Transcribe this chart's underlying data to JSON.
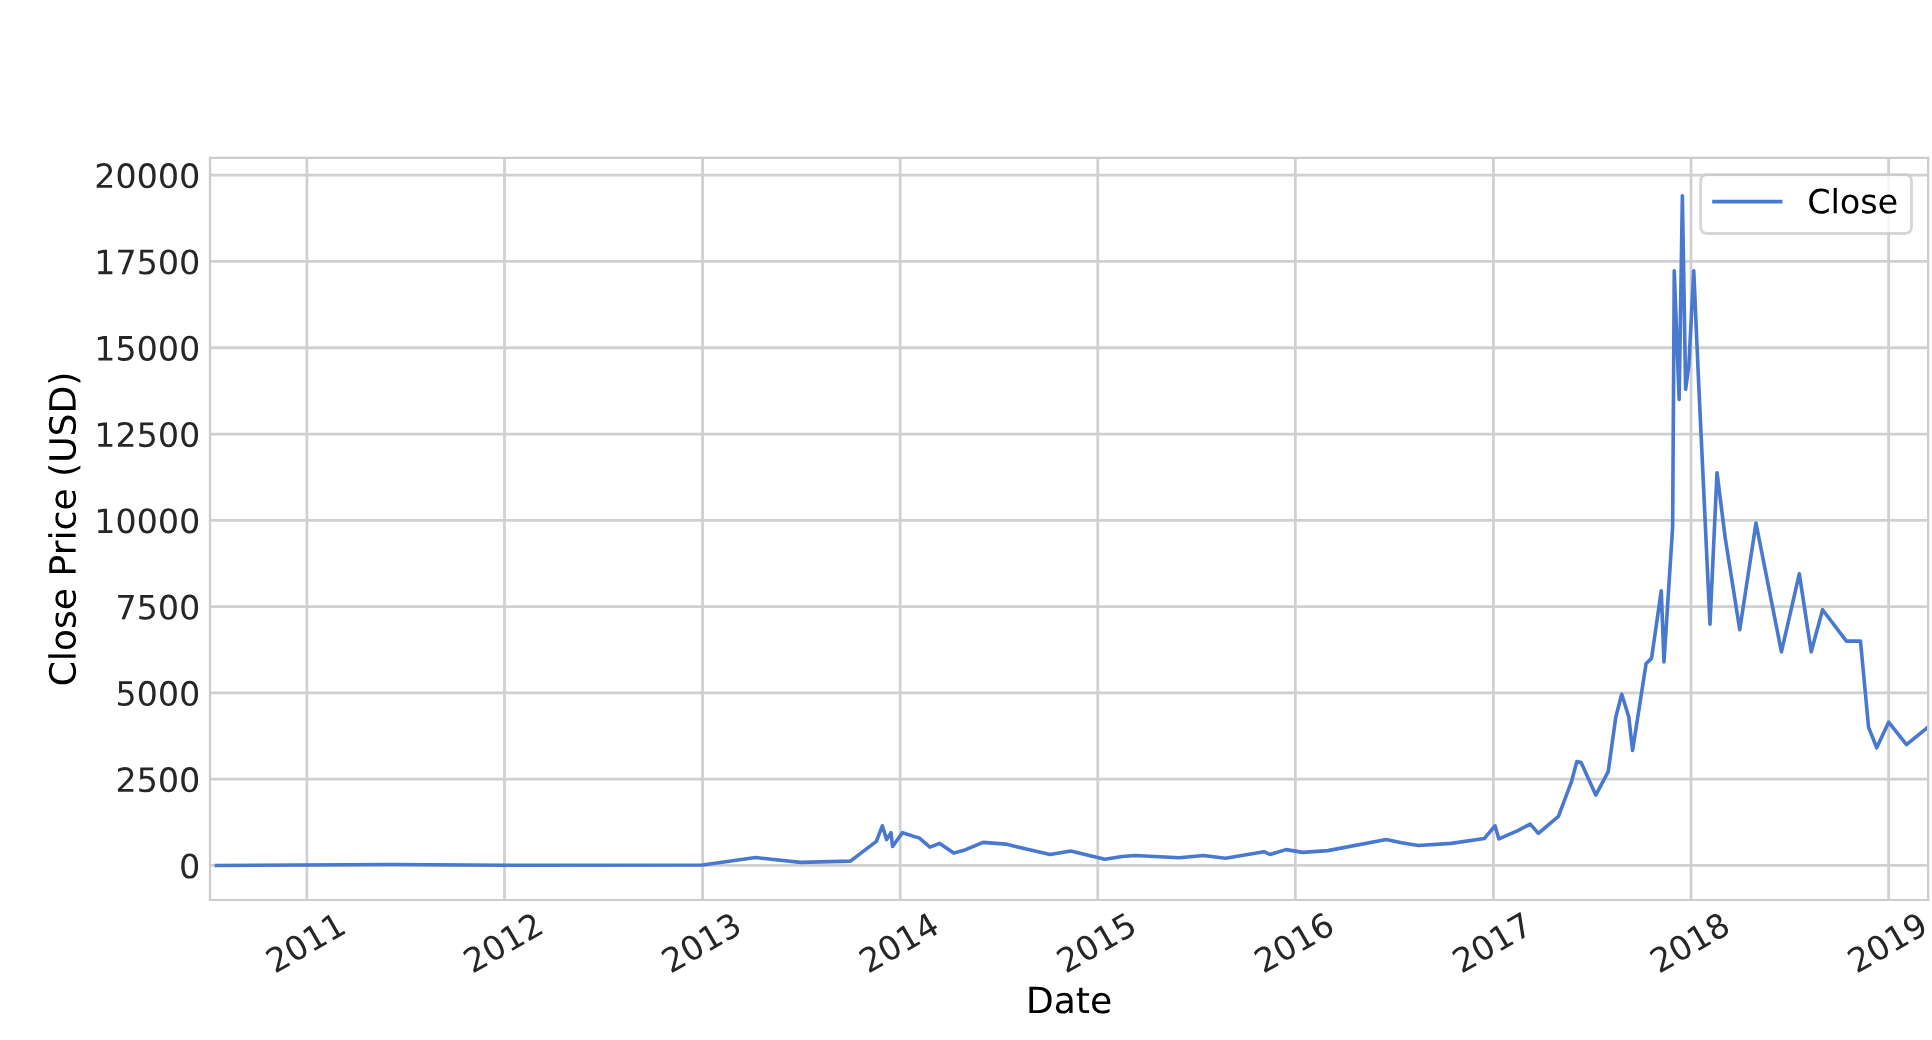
{
  "chart_data": {
    "type": "line",
    "xlabel": "Date",
    "ylabel": "Close Price (USD)",
    "xlim": [
      "2010-07-06",
      "2019-03-15"
    ],
    "ylim": [
      -1000,
      20500
    ],
    "xticks": [
      {
        "value": "2011-01-01",
        "label": "2011"
      },
      {
        "value": "2012-01-01",
        "label": "2012"
      },
      {
        "value": "2013-01-01",
        "label": "2013"
      },
      {
        "value": "2014-01-01",
        "label": "2014"
      },
      {
        "value": "2015-01-01",
        "label": "2015"
      },
      {
        "value": "2016-01-01",
        "label": "2016"
      },
      {
        "value": "2017-01-01",
        "label": "2017"
      },
      {
        "value": "2018-01-01",
        "label": "2018"
      },
      {
        "value": "2019-01-01",
        "label": "2019"
      }
    ],
    "yticks": [
      0,
      2500,
      5000,
      7500,
      10000,
      12500,
      15000,
      17500,
      20000
    ],
    "grid": true,
    "legend": "top right",
    "marker": "none",
    "line_style": "solid",
    "x": [
      "2010-07-18",
      "2011-06-08",
      "2012-01-01",
      "2013-01-01",
      "2013-04-09",
      "2013-07-01",
      "2013-10-01",
      "2013-11-18",
      "2013-11-29",
      "2013-12-07",
      "2013-12-15",
      "2013-12-18",
      "2014-01-05",
      "2014-01-25",
      "2014-02-05",
      "2014-02-25",
      "2014-03-15",
      "2014-04-10",
      "2014-05-01",
      "2014-06-03",
      "2014-07-15",
      "2014-08-18",
      "2014-10-05",
      "2014-11-12",
      "2015-01-14",
      "2015-02-15",
      "2015-03-10",
      "2015-06-01",
      "2015-07-15",
      "2015-08-25",
      "2015-11-04",
      "2015-11-15",
      "2015-12-15",
      "2016-01-15",
      "2016-03-01",
      "2016-06-17",
      "2016-07-15",
      "2016-08-15",
      "2016-10-15",
      "2016-12-15",
      "2017-01-04",
      "2017-01-11",
      "2017-02-15",
      "2017-03-10",
      "2017-03-25",
      "2017-05-01",
      "2017-05-25",
      "2017-06-04",
      "2017-06-12",
      "2017-07-09",
      "2017-08-01",
      "2017-08-15",
      "2017-08-26",
      "2017-09-08",
      "2017-09-15",
      "2017-10-10",
      "2017-10-20",
      "2017-11-07",
      "2017-11-12",
      "2017-11-28",
      "2017-12-01",
      "2017-12-10",
      "2017-12-16",
      "2017-12-22",
      "2017-12-28",
      "2018-01-06",
      "2018-01-15",
      "2018-02-05",
      "2018-02-18",
      "2018-03-05",
      "2018-04-01",
      "2018-05-01",
      "2018-06-17",
      "2018-07-20",
      "2018-08-11",
      "2018-09-01",
      "2018-10-15",
      "2018-11-10",
      "2018-11-25",
      "2018-12-10",
      "2019-01-01",
      "2019-02-03",
      "2019-03-15"
    ],
    "series": [
      {
        "name": "Close",
        "color": "#4878d0",
        "values": [
          0,
          30,
          5,
          13,
          230,
          90,
          125,
          700,
          1150,
          750,
          950,
          550,
          950,
          850,
          800,
          530,
          640,
          360,
          450,
          670,
          620,
          490,
          320,
          420,
          180,
          260,
          290,
          225,
          290,
          210,
          400,
          320,
          460,
          380,
          430,
          750,
          660,
          580,
          640,
          780,
          1150,
          770,
          1010,
          1200,
          930,
          1420,
          2420,
          3010,
          2980,
          2040,
          2720,
          4300,
          4960,
          4300,
          3330,
          5850,
          6000,
          7960,
          5900,
          9800,
          17230,
          13500,
          19400,
          13800,
          14500,
          17230,
          14000,
          6990,
          11380,
          9500,
          6830,
          9920,
          6190,
          8450,
          6190,
          7410,
          6500,
          6500,
          4000,
          3410,
          4150,
          3500,
          4010
        ]
      }
    ]
  }
}
